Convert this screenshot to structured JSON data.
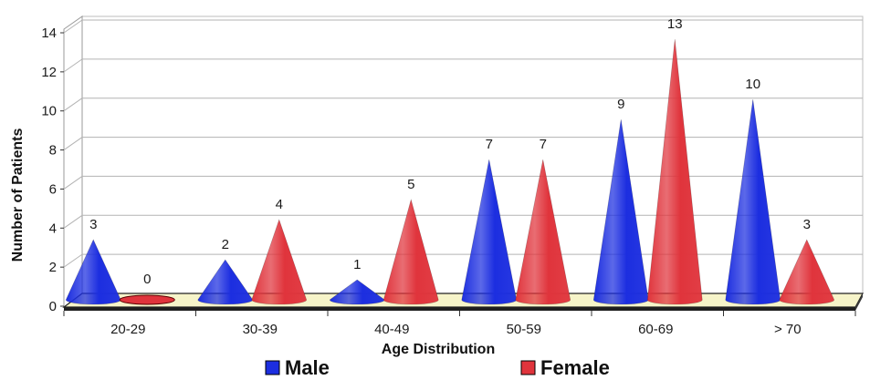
{
  "chart_data": {
    "type": "bar",
    "style": "3d-cone",
    "categories": [
      "20-29",
      "30-39",
      "40-49",
      "50-59",
      "60-69",
      "> 70"
    ],
    "series": [
      {
        "name": "Male",
        "color": "#1c2ee0",
        "values": [
          3,
          2,
          1,
          7,
          9,
          10
        ]
      },
      {
        "name": "Female",
        "color": "#e0343c",
        "values": [
          0,
          4,
          5,
          7,
          13,
          3
        ]
      }
    ],
    "xlabel": "Age Distribution",
    "ylabel": "Number of Patients",
    "ylim": [
      0,
      14
    ],
    "yticks": [
      0,
      2,
      4,
      6,
      8,
      10,
      12,
      14
    ],
    "grid": true,
    "legend_position": "bottom",
    "floor_color": "#f6f4c9"
  }
}
